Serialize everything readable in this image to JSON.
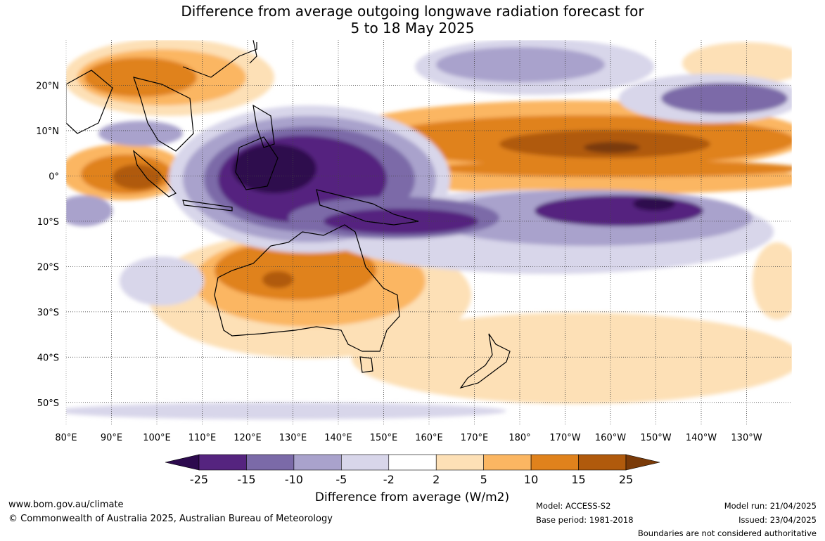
{
  "title": {
    "line1": "Difference from average outgoing longwave radiation forecast for",
    "line2": "5 to 18 May 2025"
  },
  "map": {
    "lon_labels": [
      "80°E",
      "90°E",
      "100°E",
      "110°E",
      "120°E",
      "130°E",
      "140°E",
      "150°E",
      "160°E",
      "170°E",
      "180°",
      "170°W",
      "160°W",
      "150°W",
      "140°W",
      "130°W"
    ],
    "lat_labels": [
      "20°N",
      "10°N",
      "0°",
      "10°S",
      "20°S",
      "30°S",
      "40°S",
      "50°S"
    ],
    "lon_range": [
      80,
      240
    ],
    "lat_range": [
      -55,
      30
    ],
    "gridlines": true
  },
  "colorbar": {
    "label": "Difference from average (W/m2)",
    "tick_labels": [
      "-25",
      "-15",
      "-10",
      "-5",
      "-2",
      "2",
      "5",
      "10",
      "15",
      "25"
    ],
    "colors": [
      "#2d0a4e",
      "#55247f",
      "#7b6aa8",
      "#a9a2cc",
      "#d8d6ea",
      "#ffffff",
      "#fde0b6",
      "#fbb662",
      "#e0821c",
      "#b05a0c",
      "#7a3a08"
    ]
  },
  "footer": {
    "website": "www.bom.gov.au/climate",
    "copyright": "© Commonwealth of Australia 2025, Australian Bureau of Meteorology",
    "model": "Model: ACCESS-S2",
    "base_period": "Base period: 1981-2018",
    "model_run": "Model run: 21/04/2025",
    "issued": "Issued: 23/04/2025",
    "disclaimer": "Boundaries are not considered authoritative"
  }
}
